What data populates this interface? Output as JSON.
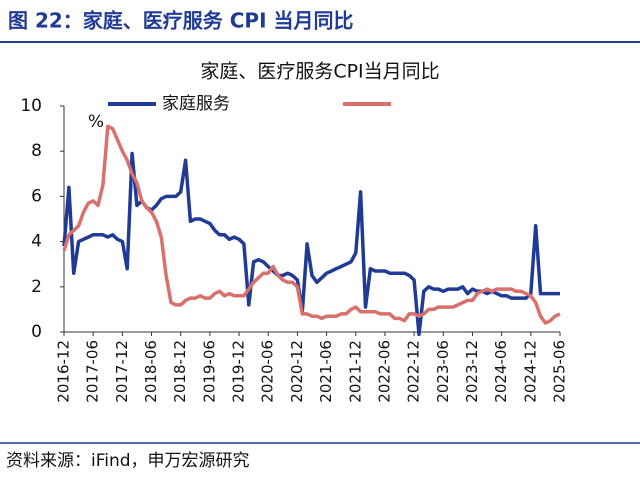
{
  "header": {
    "title": "图 22：家庭、医疗服务 CPI 当月同比"
  },
  "footer": {
    "source": "资料来源：iFind，申万宏源研究"
  },
  "chart_data": {
    "type": "line",
    "title": "家庭、医疗服务CPI当月同比",
    "y_unit": "%",
    "categories": [
      "2016-12",
      null,
      null,
      null,
      null,
      null,
      "2017-06",
      null,
      null,
      null,
      null,
      null,
      "2017-12",
      null,
      null,
      null,
      null,
      null,
      "2018-06",
      null,
      null,
      null,
      null,
      null,
      "2018-12",
      null,
      null,
      null,
      null,
      null,
      "2019-06",
      null,
      null,
      null,
      null,
      null,
      "2019-12",
      null,
      null,
      null,
      null,
      null,
      "2020-06",
      null,
      null,
      null,
      null,
      null,
      "2020-12",
      null,
      null,
      null,
      null,
      null,
      "2021-06",
      null,
      null,
      null,
      null,
      null,
      "2021-12",
      null,
      null,
      null,
      null,
      null,
      "2022-06",
      null,
      null,
      null,
      null,
      null,
      "2022-12",
      null,
      null,
      null,
      null,
      null,
      "2023-06",
      null,
      null,
      null,
      null,
      null,
      "2023-12",
      null,
      null,
      null,
      null,
      null,
      "2024-06",
      null,
      null,
      null,
      null,
      null,
      "2024-12",
      null,
      null,
      null,
      null,
      null,
      "2025-06"
    ],
    "series": [
      {
        "name": "家庭服务",
        "color": "#1f3b95",
        "values": [
          3.8,
          6.4,
          2.6,
          4.0,
          4.1,
          4.2,
          4.3,
          4.3,
          4.3,
          4.2,
          4.3,
          4.1,
          4.0,
          2.8,
          7.9,
          5.6,
          5.8,
          5.5,
          5.4,
          5.6,
          5.9,
          6.0,
          6.0,
          6.0,
          6.2,
          7.6,
          4.9,
          5.0,
          5.0,
          4.9,
          4.8,
          4.5,
          4.3,
          4.3,
          4.1,
          4.2,
          4.1,
          3.9,
          1.2,
          3.1,
          3.2,
          3.1,
          2.9,
          2.7,
          2.5,
          2.5,
          2.6,
          2.5,
          2.3,
          0.9,
          3.9,
          2.5,
          2.2,
          2.4,
          2.6,
          2.7,
          2.8,
          2.9,
          3.0,
          3.1,
          3.5,
          6.2,
          1.1,
          2.8,
          2.7,
          2.7,
          2.7,
          2.6,
          2.6,
          2.6,
          2.6,
          2.5,
          2.3,
          -0.1,
          1.8,
          2.0,
          1.9,
          1.9,
          1.8,
          1.9,
          1.9,
          1.9,
          2.0,
          1.7,
          1.9,
          1.8,
          1.8,
          1.7,
          1.8,
          1.7,
          1.6,
          1.6,
          1.5,
          1.5,
          1.5,
          1.5,
          1.7,
          4.7,
          1.7,
          1.7,
          1.7,
          1.7,
          1.7
        ]
      },
      {
        "color": "#d9706b",
        "values": [
          3.6,
          4.3,
          4.5,
          4.7,
          5.3,
          5.7,
          5.8,
          5.6,
          6.5,
          9.1,
          9.0,
          8.5,
          8.0,
          7.6,
          7.0,
          6.6,
          5.8,
          5.5,
          5.3,
          4.9,
          4.2,
          2.5,
          1.3,
          1.2,
          1.2,
          1.4,
          1.5,
          1.5,
          1.6,
          1.5,
          1.5,
          1.7,
          1.8,
          1.6,
          1.7,
          1.6,
          1.6,
          1.6,
          1.9,
          2.2,
          2.4,
          2.6,
          2.6,
          2.9,
          2.5,
          2.3,
          2.2,
          2.2,
          2.0,
          0.8,
          0.8,
          0.7,
          0.7,
          0.6,
          0.7,
          0.7,
          0.7,
          0.8,
          0.8,
          1.0,
          1.1,
          0.9,
          0.9,
          0.9,
          0.9,
          0.8,
          0.8,
          0.8,
          0.6,
          0.6,
          0.5,
          0.8,
          0.8,
          0.7,
          0.8,
          1.0,
          1.0,
          1.1,
          1.1,
          1.1,
          1.1,
          1.2,
          1.3,
          1.4,
          1.4,
          1.7,
          1.8,
          1.9,
          1.8,
          1.9,
          1.9,
          1.9,
          1.9,
          1.8,
          1.8,
          1.7,
          1.6,
          1.3,
          0.7,
          0.4,
          0.5,
          0.7,
          0.8
        ]
      }
    ],
    "ylim": [
      0,
      10
    ],
    "yticks": [
      0,
      2,
      4,
      6,
      8,
      10
    ],
    "legend": "top"
  }
}
